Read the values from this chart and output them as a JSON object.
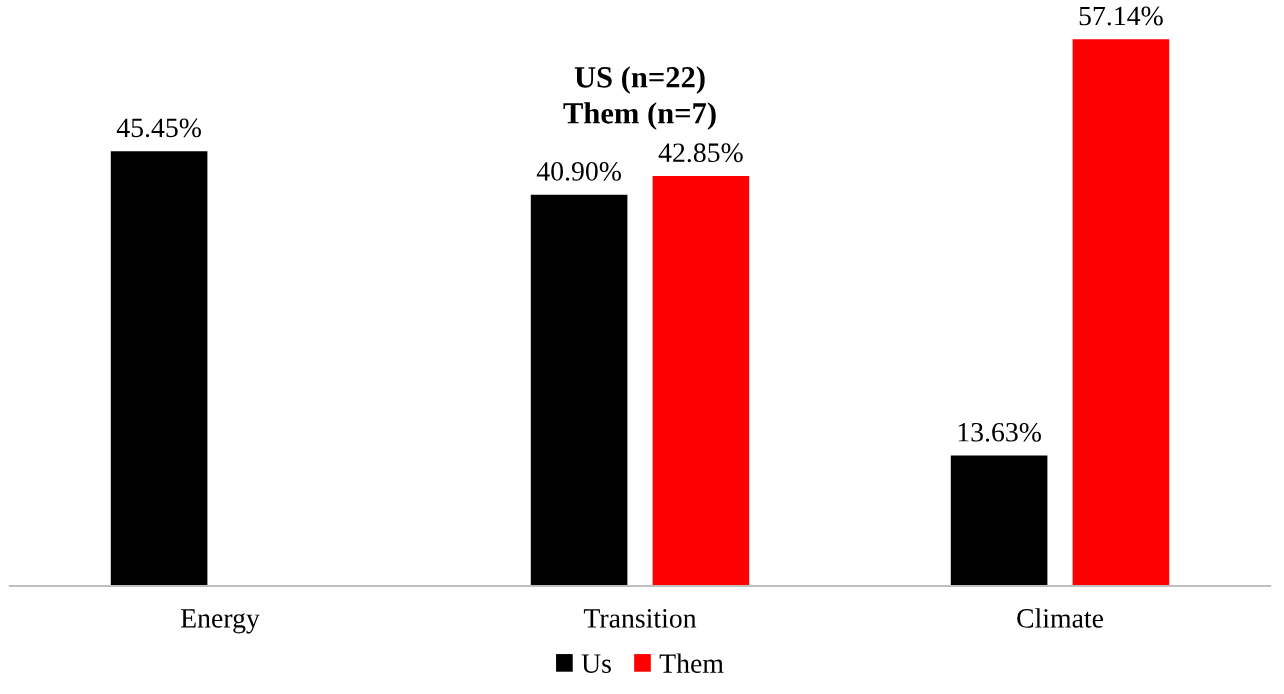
{
  "chart_data": {
    "type": "bar",
    "title": "US (n=22)",
    "subtitle": "Them (n=7)",
    "categories": [
      "Energy",
      "Transition",
      "Climate"
    ],
    "series": [
      {
        "name": "Us",
        "color": "#000000",
        "values": [
          45.45,
          40.9,
          13.63
        ],
        "value_labels": [
          "45.45%",
          "40.90%",
          "13.63%"
        ]
      },
      {
        "name": "Them",
        "color": "#ff0000",
        "values": [
          null,
          42.85,
          57.14
        ],
        "value_labels": [
          null,
          "42.85%",
          "57.14%"
        ]
      }
    ],
    "legend": "bottom",
    "grid": false
  }
}
